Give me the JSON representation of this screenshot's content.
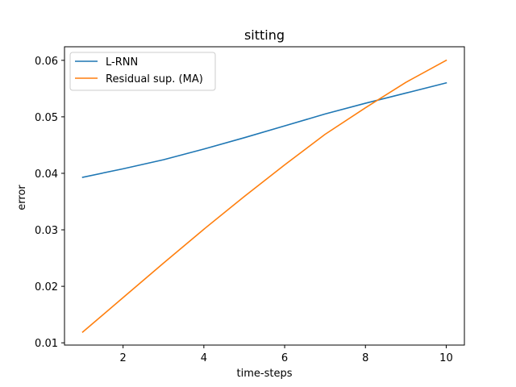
{
  "chart_data": {
    "type": "line",
    "title": "sitting",
    "xlabel": "time-steps",
    "ylabel": "error",
    "xlim": [
      0.55,
      10.45
    ],
    "ylim": [
      0.0096,
      0.0624
    ],
    "x_ticks": [
      2,
      4,
      6,
      8,
      10
    ],
    "x_tick_labels": [
      "2",
      "4",
      "6",
      "8",
      "10"
    ],
    "y_ticks": [
      0.01,
      0.02,
      0.03,
      0.04,
      0.05,
      0.06
    ],
    "y_tick_labels": [
      "0.01",
      "0.02",
      "0.03",
      "0.04",
      "0.05",
      "0.06"
    ],
    "grid": false,
    "legend_position": "upper-left",
    "x": [
      1,
      2,
      3,
      4,
      5,
      6,
      7,
      8,
      9,
      10
    ],
    "series": [
      {
        "name": "L-RNN",
        "color": "#1f77b4",
        "values": [
          0.0393,
          0.0408,
          0.0424,
          0.0443,
          0.0463,
          0.0484,
          0.0505,
          0.0524,
          0.0542,
          0.056
        ]
      },
      {
        "name": "Residual sup. (MA)",
        "color": "#ff7f0e",
        "values": [
          0.0119,
          0.018,
          0.0241,
          0.0301,
          0.0359,
          0.0415,
          0.0469,
          0.0516,
          0.0561,
          0.06
        ]
      }
    ]
  }
}
